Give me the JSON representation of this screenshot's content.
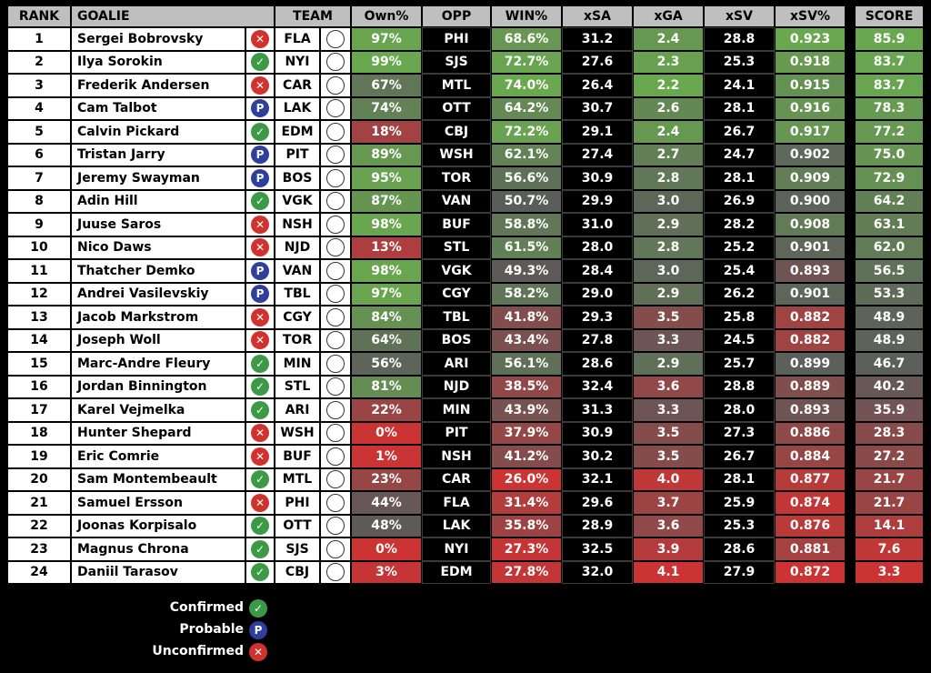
{
  "headers": {
    "rank": "RANK",
    "goalie": "GOALIE",
    "team": "TEAM",
    "own": "Own%",
    "opp": "OPP",
    "win": "WIN%",
    "xsa": "xSA",
    "xga": "xGA",
    "xsv": "xSV",
    "xsvp": "xSV%",
    "score": "SCORE"
  },
  "colors": {
    "green": "#6aa84f",
    "grey": "#5b5b5b",
    "red": "#cc3333",
    "confirmed": "#3c9a47",
    "probable": "#2f3f9e",
    "unconfirmed": "#d2322d"
  },
  "legend": [
    {
      "label": "Confirmed",
      "status": "C"
    },
    {
      "label": "Probable",
      "status": "P"
    },
    {
      "label": "Unconfirmed",
      "status": "U"
    }
  ],
  "chart_data": {
    "type": "table",
    "rows": [
      {
        "rank": "1",
        "goalie": "Sergei Bobrovsky",
        "status": "U",
        "team": "FLA",
        "own": "97%",
        "opp": "PHI",
        "win": "68.6%",
        "xsa": "31.2",
        "xga": "2.4",
        "xsv": "28.8",
        "xsvp": "0.923",
        "score": "85.9"
      },
      {
        "rank": "2",
        "goalie": "Ilya Sorokin",
        "status": "C",
        "team": "NYI",
        "own": "99%",
        "opp": "SJS",
        "win": "72.7%",
        "xsa": "27.6",
        "xga": "2.3",
        "xsv": "25.3",
        "xsvp": "0.918",
        "score": "83.7"
      },
      {
        "rank": "3",
        "goalie": "Frederik Andersen",
        "status": "U",
        "team": "CAR",
        "own": "67%",
        "opp": "MTL",
        "win": "74.0%",
        "xsa": "26.4",
        "xga": "2.2",
        "xsv": "24.1",
        "xsvp": "0.915",
        "score": "83.7"
      },
      {
        "rank": "4",
        "goalie": "Cam Talbot",
        "status": "P",
        "team": "LAK",
        "own": "74%",
        "opp": "OTT",
        "win": "64.2%",
        "xsa": "30.7",
        "xga": "2.6",
        "xsv": "28.1",
        "xsvp": "0.916",
        "score": "78.3"
      },
      {
        "rank": "5",
        "goalie": "Calvin Pickard",
        "status": "C",
        "team": "EDM",
        "own": "18%",
        "opp": "CBJ",
        "win": "72.2%",
        "xsa": "29.1",
        "xga": "2.4",
        "xsv": "26.7",
        "xsvp": "0.917",
        "score": "77.2"
      },
      {
        "rank": "6",
        "goalie": "Tristan Jarry",
        "status": "P",
        "team": "PIT",
        "own": "89%",
        "opp": "WSH",
        "win": "62.1%",
        "xsa": "27.4",
        "xga": "2.7",
        "xsv": "24.7",
        "xsvp": "0.902",
        "score": "75.0"
      },
      {
        "rank": "7",
        "goalie": "Jeremy Swayman",
        "status": "P",
        "team": "BOS",
        "own": "95%",
        "opp": "TOR",
        "win": "56.6%",
        "xsa": "30.9",
        "xga": "2.8",
        "xsv": "28.1",
        "xsvp": "0.909",
        "score": "72.9"
      },
      {
        "rank": "8",
        "goalie": "Adin Hill",
        "status": "C",
        "team": "VGK",
        "own": "87%",
        "opp": "VAN",
        "win": "50.7%",
        "xsa": "29.9",
        "xga": "3.0",
        "xsv": "26.9",
        "xsvp": "0.900",
        "score": "64.2"
      },
      {
        "rank": "9",
        "goalie": "Juuse Saros",
        "status": "U",
        "team": "NSH",
        "own": "98%",
        "opp": "BUF",
        "win": "58.8%",
        "xsa": "31.0",
        "xga": "2.9",
        "xsv": "28.2",
        "xsvp": "0.908",
        "score": "63.1"
      },
      {
        "rank": "10",
        "goalie": "Nico Daws",
        "status": "U",
        "team": "NJD",
        "own": "13%",
        "opp": "STL",
        "win": "61.5%",
        "xsa": "28.0",
        "xga": "2.8",
        "xsv": "25.2",
        "xsvp": "0.901",
        "score": "62.0"
      },
      {
        "rank": "11",
        "goalie": "Thatcher Demko",
        "status": "P",
        "team": "VAN",
        "own": "98%",
        "opp": "VGK",
        "win": "49.3%",
        "xsa": "28.4",
        "xga": "3.0",
        "xsv": "25.4",
        "xsvp": "0.893",
        "score": "56.5"
      },
      {
        "rank": "12",
        "goalie": "Andrei Vasilevskiy",
        "status": "P",
        "team": "TBL",
        "own": "97%",
        "opp": "CGY",
        "win": "58.2%",
        "xsa": "29.0",
        "xga": "2.9",
        "xsv": "26.2",
        "xsvp": "0.901",
        "score": "53.3"
      },
      {
        "rank": "13",
        "goalie": "Jacob Markstrom",
        "status": "U",
        "team": "CGY",
        "own": "84%",
        "opp": "TBL",
        "win": "41.8%",
        "xsa": "29.3",
        "xga": "3.5",
        "xsv": "25.8",
        "xsvp": "0.882",
        "score": "48.9"
      },
      {
        "rank": "14",
        "goalie": "Joseph Woll",
        "status": "U",
        "team": "TOR",
        "own": "64%",
        "opp": "BOS",
        "win": "43.4%",
        "xsa": "27.8",
        "xga": "3.3",
        "xsv": "24.5",
        "xsvp": "0.882",
        "score": "48.9"
      },
      {
        "rank": "15",
        "goalie": "Marc-Andre Fleury",
        "status": "C",
        "team": "MIN",
        "own": "56%",
        "opp": "ARI",
        "win": "56.1%",
        "xsa": "28.6",
        "xga": "2.9",
        "xsv": "25.7",
        "xsvp": "0.899",
        "score": "46.7"
      },
      {
        "rank": "16",
        "goalie": "Jordan Binnington",
        "status": "C",
        "team": "STL",
        "own": "81%",
        "opp": "NJD",
        "win": "38.5%",
        "xsa": "32.4",
        "xga": "3.6",
        "xsv": "28.8",
        "xsvp": "0.889",
        "score": "40.2"
      },
      {
        "rank": "17",
        "goalie": "Karel Vejmelka",
        "status": "C",
        "team": "ARI",
        "own": "22%",
        "opp": "MIN",
        "win": "43.9%",
        "xsa": "31.3",
        "xga": "3.3",
        "xsv": "28.0",
        "xsvp": "0.893",
        "score": "35.9"
      },
      {
        "rank": "18",
        "goalie": "Hunter Shepard",
        "status": "U",
        "team": "WSH",
        "own": "0%",
        "opp": "PIT",
        "win": "37.9%",
        "xsa": "30.9",
        "xga": "3.5",
        "xsv": "27.3",
        "xsvp": "0.886",
        "score": "28.3"
      },
      {
        "rank": "19",
        "goalie": "Eric Comrie",
        "status": "U",
        "team": "BUF",
        "own": "1%",
        "opp": "NSH",
        "win": "41.2%",
        "xsa": "30.2",
        "xga": "3.5",
        "xsv": "26.7",
        "xsvp": "0.884",
        "score": "27.2"
      },
      {
        "rank": "20",
        "goalie": "Sam Montembeault",
        "status": "C",
        "team": "MTL",
        "own": "23%",
        "opp": "CAR",
        "win": "26.0%",
        "xsa": "32.1",
        "xga": "4.0",
        "xsv": "28.1",
        "xsvp": "0.877",
        "score": "21.7"
      },
      {
        "rank": "21",
        "goalie": "Samuel Ersson",
        "status": "U",
        "team": "PHI",
        "own": "44%",
        "opp": "FLA",
        "win": "31.4%",
        "xsa": "29.6",
        "xga": "3.7",
        "xsv": "25.9",
        "xsvp": "0.874",
        "score": "21.7"
      },
      {
        "rank": "22",
        "goalie": "Joonas Korpisalo",
        "status": "C",
        "team": "OTT",
        "own": "48%",
        "opp": "LAK",
        "win": "35.8%",
        "xsa": "28.9",
        "xga": "3.6",
        "xsv": "25.3",
        "xsvp": "0.876",
        "score": "14.1"
      },
      {
        "rank": "23",
        "goalie": "Magnus Chrona",
        "status": "C",
        "team": "SJS",
        "own": "0%",
        "opp": "NYI",
        "win": "27.3%",
        "xsa": "32.5",
        "xga": "3.9",
        "xsv": "28.6",
        "xsvp": "0.881",
        "score": "7.6"
      },
      {
        "rank": "24",
        "goalie": "Daniil Tarasov",
        "status": "C",
        "team": "CBJ",
        "own": "3%",
        "opp": "EDM",
        "win": "27.8%",
        "xsa": "32.0",
        "xga": "4.1",
        "xsv": "27.9",
        "xsvp": "0.872",
        "score": "3.3"
      }
    ]
  }
}
